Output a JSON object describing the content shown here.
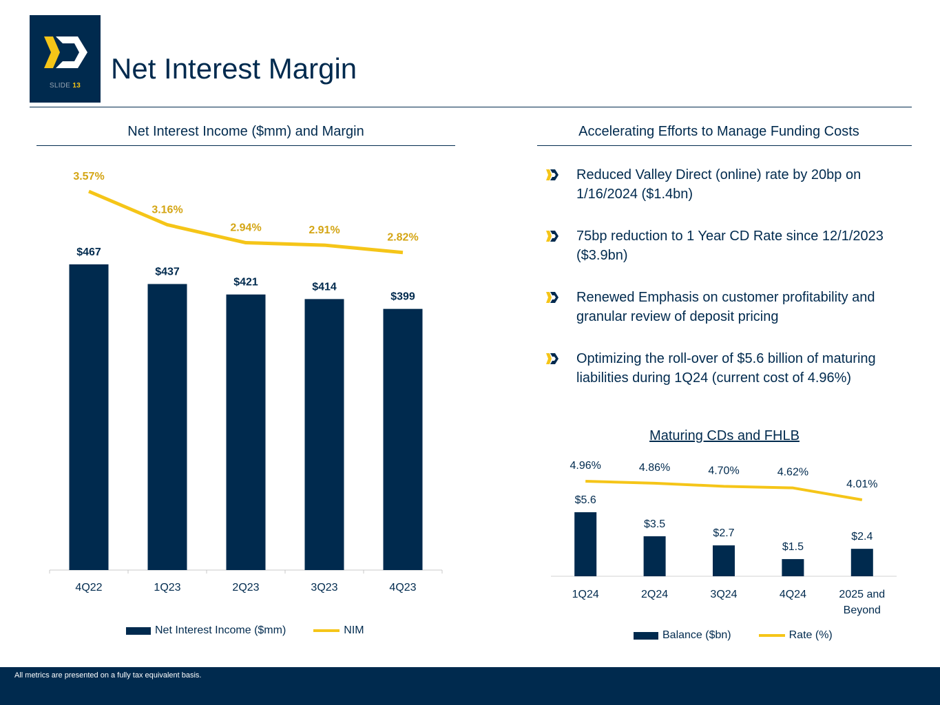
{
  "header": {
    "slide_prefix": "SLIDE",
    "slide_number": "13",
    "title": "Net Interest Margin",
    "logo_icon": "chevron-logo-icon"
  },
  "left_section": {
    "title": "Net Interest Income ($mm) and Margin"
  },
  "right_section": {
    "title": "Accelerating Efforts to Manage Funding Costs",
    "bullets": [
      "Reduced Valley Direct (online) rate by 20bp on 1/16/2024 ($1.4bn)",
      "75bp reduction to 1 Year CD Rate since 12/1/2023 ($3.9bn)",
      "Renewed Emphasis on customer profitability and granular review of deposit pricing",
      "Optimizing the roll-over of $5.6 billion of maturing liabilities during 1Q24 (current cost of 4.96%)"
    ],
    "bullet_icon": "chevron-bullet-icon"
  },
  "colors": {
    "navy": "#002a4e",
    "gold": "#f5c518",
    "gold_label": "#d4a514"
  },
  "footer": {
    "note": "All metrics are presented on a fully tax equivalent basis."
  },
  "chart_data": [
    {
      "type": "bar",
      "title": "Net Interest Income ($mm) and Margin",
      "categories": [
        "4Q22",
        "1Q23",
        "2Q23",
        "3Q23",
        "4Q23"
      ],
      "series": [
        {
          "name": "Net Interest Income ($mm)",
          "type": "bar",
          "values": [
            467,
            437,
            421,
            414,
            399
          ],
          "labels": [
            "$467",
            "$437",
            "$421",
            "$414",
            "$399"
          ]
        },
        {
          "name": "NIM",
          "type": "line",
          "values": [
            3.57,
            3.16,
            2.94,
            2.91,
            2.82
          ],
          "labels": [
            "3.57%",
            "3.16%",
            "2.94%",
            "2.91%",
            "2.82%"
          ]
        }
      ],
      "ylim": [
        0,
        467
      ],
      "legend": "bottom"
    },
    {
      "type": "bar",
      "title": "Maturing CDs and FHLB",
      "categories": [
        "1Q24",
        "2Q24",
        "3Q24",
        "4Q24",
        "2025 and Beyond"
      ],
      "series": [
        {
          "name": "Balance ($bn)",
          "type": "bar",
          "values": [
            5.6,
            3.5,
            2.7,
            1.5,
            2.4
          ],
          "labels": [
            "$5.6",
            "$3.5",
            "$2.7",
            "$1.5",
            "$2.4"
          ]
        },
        {
          "name": "Rate (%)",
          "type": "line",
          "values": [
            4.96,
            4.86,
            4.7,
            4.62,
            4.01
          ],
          "labels": [
            "4.96%",
            "4.86%",
            "4.70%",
            "4.62%",
            "4.01%"
          ]
        }
      ],
      "ylim": [
        0,
        5.6
      ],
      "legend": "bottom"
    }
  ]
}
